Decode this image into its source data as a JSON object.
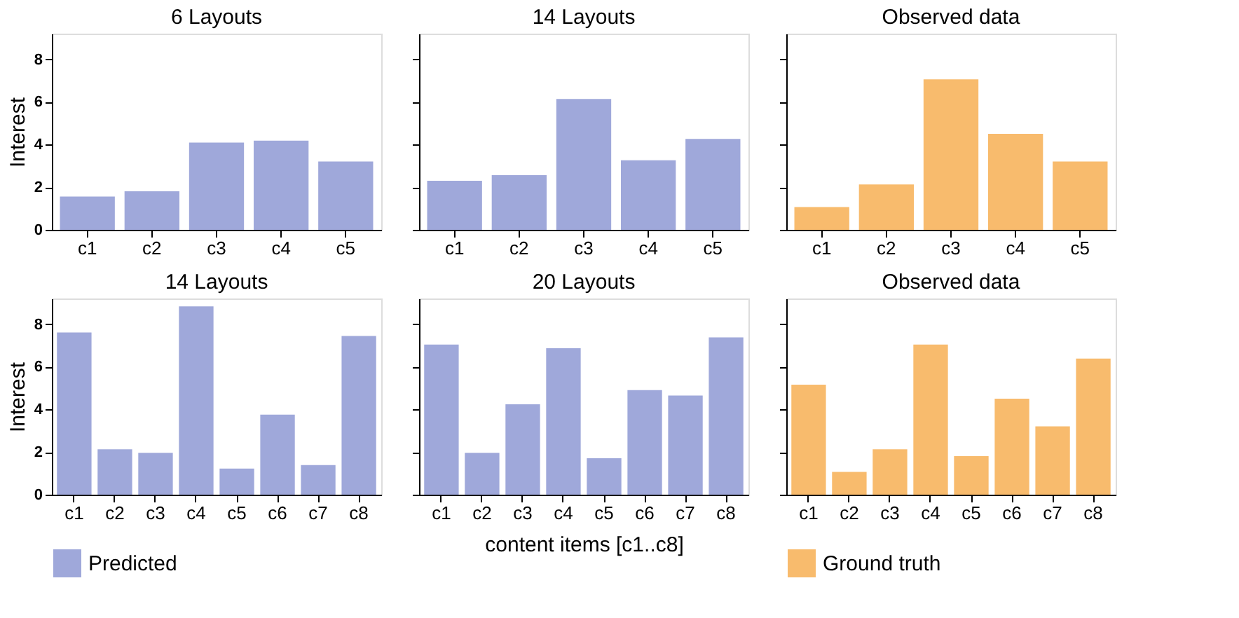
{
  "chart_data": [
    {
      "type": "bar",
      "title": "6 Layouts",
      "ylabel": "Interest",
      "categories": [
        "c1",
        "c2",
        "c3",
        "c4",
        "c5"
      ],
      "ylim": [
        0,
        9.2
      ],
      "yticks": [
        0,
        2,
        4,
        6,
        8
      ],
      "grid": false,
      "series": [
        {
          "color": "#9fa8da",
          "values": [
            1.56,
            1.81,
            4.09,
            4.18,
            3.2
          ]
        }
      ]
    },
    {
      "type": "bar",
      "title": "14 Layouts",
      "categories": [
        "c1",
        "c2",
        "c3",
        "c4",
        "c5"
      ],
      "ylim": [
        0,
        9.2
      ],
      "yticks": [
        0,
        2,
        4,
        6,
        8
      ],
      "grid": false,
      "tick_labels": "x",
      "series": [
        {
          "color": "#9fa8da",
          "values": [
            2.3,
            2.56,
            6.14,
            3.26,
            4.26
          ]
        }
      ]
    },
    {
      "type": "bar",
      "title": "Observed data",
      "categories": [
        "c1",
        "c2",
        "c3",
        "c4",
        "c5"
      ],
      "ylim": [
        0,
        9.2
      ],
      "yticks": [
        0,
        2,
        4,
        6,
        8
      ],
      "grid": false,
      "tick_labels": "x",
      "series": [
        {
          "color": "#f8bb6d",
          "values": [
            1.07,
            2.13,
            7.06,
            4.5,
            3.2
          ]
        }
      ]
    },
    {
      "type": "bar",
      "title": "14 Layouts",
      "ylabel": "Interest",
      "categories": [
        "c1",
        "c2",
        "c3",
        "c4",
        "c5",
        "c6",
        "c7",
        "c8"
      ],
      "ylim": [
        0,
        9.2
      ],
      "yticks": [
        0,
        2,
        4,
        6,
        8
      ],
      "grid": false,
      "legend": "bottom",
      "series": [
        {
          "name": "Predicted",
          "color": "#9fa8da",
          "values": [
            7.61,
            2.13,
            1.96,
            8.83,
            1.22,
            3.75,
            1.39,
            7.44
          ]
        }
      ]
    },
    {
      "type": "bar",
      "title": "20 Layouts",
      "xlabel": "content items [c1..c8]",
      "categories": [
        "c1",
        "c2",
        "c3",
        "c4",
        "c5",
        "c6",
        "c7",
        "c8"
      ],
      "ylim": [
        0,
        9.2
      ],
      "yticks": [
        0,
        2,
        4,
        6,
        8
      ],
      "grid": false,
      "tick_labels": "x",
      "series": [
        {
          "color": "#9fa8da",
          "values": [
            7.04,
            1.96,
            4.24,
            6.87,
            1.71,
            4.9,
            4.65,
            7.38
          ]
        }
      ]
    },
    {
      "type": "bar",
      "title": "Observed data",
      "categories": [
        "c1",
        "c2",
        "c3",
        "c4",
        "c5",
        "c6",
        "c7",
        "c8"
      ],
      "ylim": [
        0,
        9.2
      ],
      "yticks": [
        0,
        2,
        4,
        6,
        8
      ],
      "grid": false,
      "tick_labels": "x",
      "legend": "bottom",
      "series": [
        {
          "name": "Ground truth",
          "color": "#f8bb6d",
          "values": [
            5.16,
            1.07,
            2.13,
            7.04,
            1.81,
            4.5,
            3.2,
            6.38
          ]
        }
      ]
    }
  ]
}
